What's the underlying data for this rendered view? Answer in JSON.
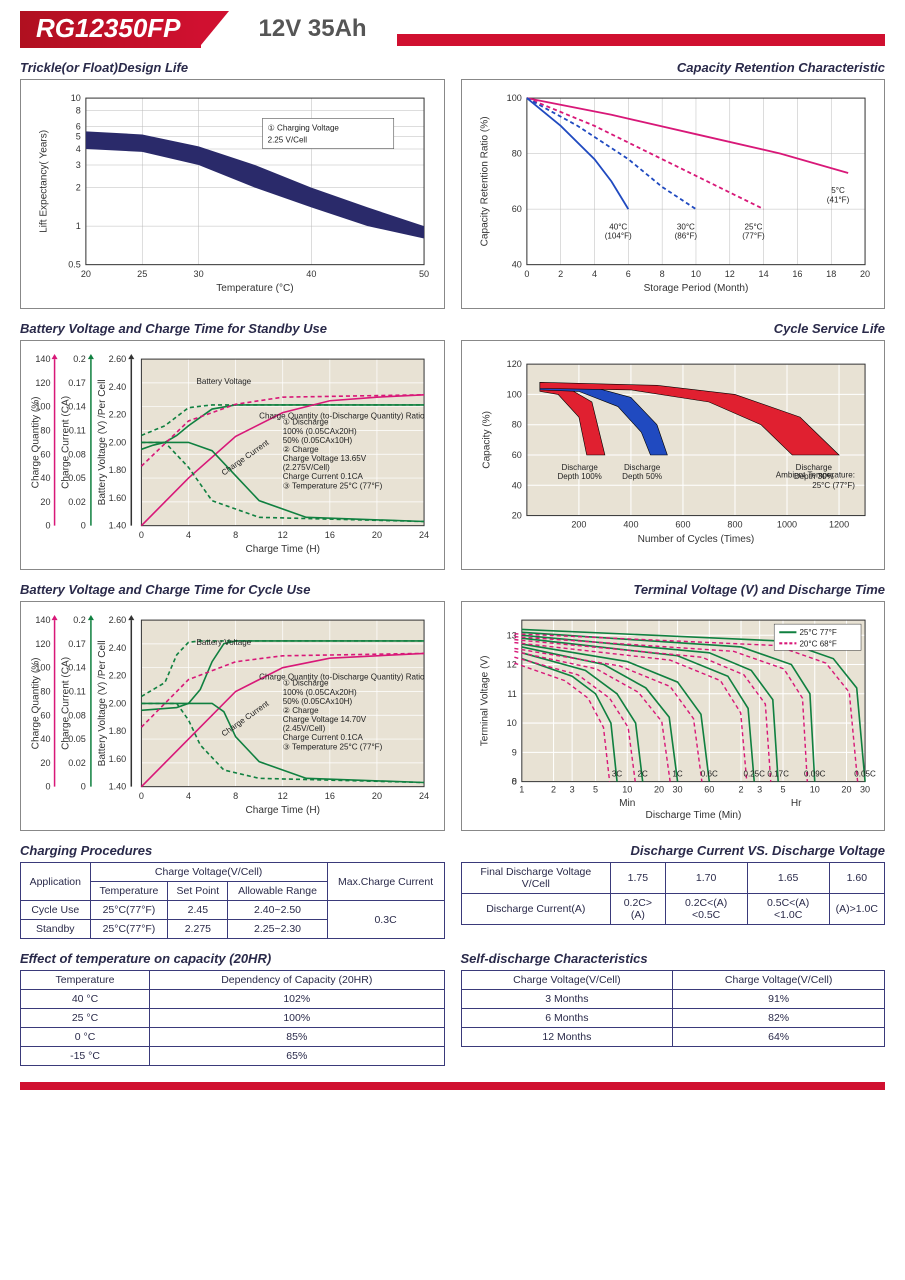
{
  "header": {
    "model": "RG12350FP",
    "spec": "12V  35Ah"
  },
  "colors": {
    "brand_red": "#d01030",
    "navy": "#2a2a6a",
    "magenta": "#d81878",
    "green": "#108040",
    "blue": "#204ac0",
    "red2": "#e02030",
    "grid": "#bbbbbb",
    "plot_bg": "#e8e2d4",
    "axis": "#333333"
  },
  "chart1": {
    "title": "Trickle(or Float)Design Life",
    "x_label": "Temperature (°C)",
    "y_label": "Lift  Expectancy( Years)",
    "x_ticks": [
      20,
      25,
      30,
      40,
      50
    ],
    "y_ticks": [
      0.5,
      1,
      2,
      3,
      4,
      5,
      6,
      8,
      10
    ],
    "y_scale": "log",
    "band_upper": [
      [
        20,
        5.5
      ],
      [
        25,
        5.2
      ],
      [
        30,
        4.2
      ],
      [
        35,
        3.0
      ],
      [
        40,
        2.0
      ],
      [
        45,
        1.4
      ],
      [
        50,
        1.0
      ]
    ],
    "band_lower": [
      [
        20,
        4.0
      ],
      [
        25,
        3.8
      ],
      [
        30,
        3.0
      ],
      [
        35,
        2.0
      ],
      [
        40,
        1.4
      ],
      [
        45,
        1.0
      ],
      [
        50,
        0.8
      ]
    ],
    "band_color": "#2a2a6a",
    "annotation": "① Charging Voltage\n2.25 V/Cell"
  },
  "chart2": {
    "title": "Capacity Retention Characteristic",
    "x_label": "Storage Period (Month)",
    "y_label": "Capacity Retention Ratio (%)",
    "x_ticks": [
      0,
      2,
      4,
      6,
      8,
      10,
      12,
      14,
      16,
      18,
      20
    ],
    "y_ticks": [
      40,
      60,
      80,
      100
    ],
    "lines": [
      {
        "label": "5°C\n(41°F)",
        "color": "#d81878",
        "dash": null,
        "pts": [
          [
            0,
            100
          ],
          [
            5,
            94
          ],
          [
            10,
            87
          ],
          [
            15,
            80
          ],
          [
            19,
            73
          ]
        ]
      },
      {
        "label": "25°C\n(77°F)",
        "color": "#d81878",
        "dash": "4,3",
        "pts": [
          [
            0,
            100
          ],
          [
            4,
            90
          ],
          [
            8,
            78
          ],
          [
            12,
            66
          ],
          [
            14,
            60
          ]
        ]
      },
      {
        "label": "30°C\n(86°F)",
        "color": "#204ac0",
        "dash": "4,3",
        "pts": [
          [
            0,
            100
          ],
          [
            3,
            90
          ],
          [
            6,
            78
          ],
          [
            8,
            68
          ],
          [
            10,
            60
          ]
        ]
      },
      {
        "label": "40°C\n(104°F)",
        "color": "#204ac0",
        "dash": null,
        "pts": [
          [
            0,
            100
          ],
          [
            2,
            90
          ],
          [
            4,
            78
          ],
          [
            5,
            70
          ],
          [
            6,
            60
          ]
        ]
      }
    ]
  },
  "chart3": {
    "title": "Battery Voltage and Charge Time for Standby Use",
    "x_label": "Charge Time (H)",
    "y1_label": "Charge Quantity (%)",
    "y2_label": "Charge Current (CA)",
    "y3_label": "Battery Voltage (V) /Per Cell",
    "x_ticks": [
      0,
      4,
      8,
      12,
      16,
      20,
      24
    ],
    "y1_ticks": [
      0,
      20,
      40,
      60,
      80,
      100,
      120,
      140
    ],
    "y2_ticks": [
      0,
      0.02,
      0.05,
      0.08,
      0.11,
      0.14,
      0.17,
      0.2
    ],
    "y3_ticks": [
      1.4,
      1.6,
      1.8,
      2.0,
      2.2,
      2.4,
      2.6
    ],
    "curves": {
      "voltage_100": {
        "color": "#108040",
        "dash": null,
        "pts": [
          [
            0,
            1.95
          ],
          [
            1,
            1.98
          ],
          [
            2,
            2.0
          ],
          [
            3,
            2.05
          ],
          [
            4,
            2.12
          ],
          [
            6,
            2.24
          ],
          [
            8,
            2.27
          ],
          [
            12,
            2.27
          ],
          [
            24,
            2.27
          ]
        ]
      },
      "voltage_50": {
        "color": "#108040",
        "dash": "4,3",
        "pts": [
          [
            0,
            2.05
          ],
          [
            2,
            2.12
          ],
          [
            4,
            2.25
          ],
          [
            6,
            2.27
          ],
          [
            24,
            2.27
          ]
        ]
      },
      "quantity_100": {
        "color": "#d81878",
        "dash": null,
        "pts": [
          [
            0,
            0
          ],
          [
            4,
            40
          ],
          [
            8,
            75
          ],
          [
            12,
            95
          ],
          [
            16,
            105
          ],
          [
            20,
            108
          ],
          [
            24,
            110
          ]
        ]
      },
      "quantity_50": {
        "color": "#d81878",
        "dash": "4,3",
        "pts": [
          [
            0,
            50
          ],
          [
            4,
            88
          ],
          [
            8,
            102
          ],
          [
            12,
            108
          ],
          [
            24,
            110
          ]
        ]
      },
      "current_100": {
        "color": "#108040",
        "dash": null,
        "pts": [
          [
            0,
            0.1
          ],
          [
            4,
            0.1
          ],
          [
            6,
            0.09
          ],
          [
            8,
            0.06
          ],
          [
            10,
            0.03
          ],
          [
            14,
            0.01
          ],
          [
            24,
            0.005
          ]
        ]
      },
      "current_50": {
        "color": "#108040",
        "dash": "4,3",
        "pts": [
          [
            0,
            0.1
          ],
          [
            2,
            0.1
          ],
          [
            4,
            0.07
          ],
          [
            6,
            0.03
          ],
          [
            10,
            0.01
          ],
          [
            24,
            0.005
          ]
        ]
      }
    },
    "notes": [
      "Battery Voltage",
      "Charge Quantity (to-Discharge Quantity) Ratio",
      "① Discharge",
      "100% (0.05CAx20H)",
      "50% (0.05CAx10H)",
      "② Charge",
      "Charge Voltage 13.65V",
      "(2.275V/Cell)",
      "Charge Current 0.1CA",
      "③ Temperature 25°C (77°F)",
      "Charge Current"
    ]
  },
  "chart4": {
    "title": "Cycle Service Life",
    "x_label": "Number of Cycles (Times)",
    "y_label": "Capacity (%)",
    "x_ticks": [
      200,
      400,
      600,
      800,
      1000,
      1200
    ],
    "y_ticks": [
      20,
      40,
      60,
      80,
      100,
      120
    ],
    "regions": [
      {
        "label": "Discharge\nDepth 100%",
        "color": "#e02030",
        "upper": [
          [
            50,
            108
          ],
          [
            150,
            105
          ],
          [
            250,
            95
          ],
          [
            300,
            60
          ]
        ],
        "lower": [
          [
            50,
            102
          ],
          [
            120,
            100
          ],
          [
            200,
            85
          ],
          [
            230,
            60
          ]
        ]
      },
      {
        "label": "Discharge\nDepth 50%",
        "color": "#204ac0",
        "upper": [
          [
            50,
            108
          ],
          [
            250,
            105
          ],
          [
            400,
            98
          ],
          [
            500,
            80
          ],
          [
            540,
            60
          ]
        ],
        "lower": [
          [
            50,
            103
          ],
          [
            200,
            102
          ],
          [
            350,
            92
          ],
          [
            440,
            75
          ],
          [
            475,
            60
          ]
        ]
      },
      {
        "label": "Discharge\nDepth 30%",
        "color": "#e02030",
        "upper": [
          [
            50,
            108
          ],
          [
            500,
            106
          ],
          [
            800,
            100
          ],
          [
            1050,
            85
          ],
          [
            1200,
            60
          ]
        ],
        "lower": [
          [
            50,
            104
          ],
          [
            400,
            103
          ],
          [
            700,
            95
          ],
          [
            900,
            80
          ],
          [
            1020,
            60
          ]
        ]
      }
    ],
    "ambient": "Ambient Temperature:\n25°C (77°F)"
  },
  "chart5": {
    "title": "Battery Voltage and Charge Time for Cycle Use",
    "x_label": "Charge Time (H)",
    "y1_label": "Charge Quantity (%)",
    "y2_label": "Charge Current (CA)",
    "y3_label": "Battery Voltage (V) /Per Cell",
    "x_ticks": [
      0,
      4,
      8,
      12,
      16,
      20,
      24
    ],
    "y1_ticks": [
      0,
      20,
      40,
      60,
      80,
      100,
      120,
      140
    ],
    "y2_ticks": [
      0,
      0.02,
      0.05,
      0.08,
      0.11,
      0.14,
      0.17,
      0.2
    ],
    "y3_ticks": [
      1.4,
      1.6,
      1.8,
      2.0,
      2.2,
      2.4,
      2.6
    ],
    "curves": {
      "voltage_100": {
        "color": "#108040",
        "dash": null,
        "pts": [
          [
            0,
            1.95
          ],
          [
            3,
            1.97
          ],
          [
            4,
            2.0
          ],
          [
            5,
            2.1
          ],
          [
            6,
            2.3
          ],
          [
            7,
            2.43
          ],
          [
            8,
            2.45
          ],
          [
            24,
            2.45
          ]
        ]
      },
      "voltage_50": {
        "color": "#108040",
        "dash": "4,3",
        "pts": [
          [
            0,
            2.05
          ],
          [
            2,
            2.15
          ],
          [
            3,
            2.35
          ],
          [
            4,
            2.44
          ],
          [
            5,
            2.45
          ],
          [
            24,
            2.45
          ]
        ]
      },
      "quantity_100": {
        "color": "#d81878",
        "dash": null,
        "pts": [
          [
            0,
            0
          ],
          [
            4,
            40
          ],
          [
            8,
            80
          ],
          [
            12,
            100
          ],
          [
            16,
            108
          ],
          [
            24,
            112
          ]
        ]
      },
      "quantity_50": {
        "color": "#d81878",
        "dash": "4,3",
        "pts": [
          [
            0,
            50
          ],
          [
            4,
            90
          ],
          [
            8,
            105
          ],
          [
            12,
            110
          ],
          [
            24,
            112
          ]
        ]
      },
      "current_100": {
        "color": "#108040",
        "dash": null,
        "pts": [
          [
            0,
            0.1
          ],
          [
            6,
            0.1
          ],
          [
            7,
            0.09
          ],
          [
            8,
            0.06
          ],
          [
            10,
            0.03
          ],
          [
            14,
            0.01
          ],
          [
            24,
            0.005
          ]
        ]
      },
      "current_50": {
        "color": "#108040",
        "dash": "4,3",
        "pts": [
          [
            0,
            0.1
          ],
          [
            3,
            0.1
          ],
          [
            4,
            0.08
          ],
          [
            5,
            0.05
          ],
          [
            7,
            0.02
          ],
          [
            10,
            0.01
          ],
          [
            24,
            0.005
          ]
        ]
      }
    },
    "notes": [
      "Battery Voltage",
      "Charge Quantity (to-Discharge Quantity) Ratio",
      "① Discharge",
      "100% (0.05CAx20H)",
      "50% (0.05CAx10H)",
      "② Charge",
      "Charge Voltage 14.70V",
      "(2.45V/Cell)",
      "Charge Current 0.1CA",
      "③ Temperature 25°C (77°F)",
      "Charge Current"
    ]
  },
  "chart6": {
    "title": "Terminal Voltage (V) and Discharge Time",
    "x_label": "Discharge Time (Min)",
    "y_label": "Terminal Voltage (V)",
    "x_segments": {
      "min": [
        1,
        2,
        3,
        5,
        10,
        20,
        30,
        60
      ],
      "hr": [
        2,
        3,
        5,
        10,
        20,
        30
      ]
    },
    "y_ticks": [
      0,
      8,
      9,
      10,
      11,
      12,
      13
    ],
    "legend": [
      {
        "label": "25°C 77°F",
        "color": "#108040",
        "dash": null
      },
      {
        "label": "20°C 68°F",
        "color": "#d81878",
        "dash": "4,3"
      }
    ],
    "rates": [
      "3C",
      "2C",
      "1C",
      "0.6C",
      "0.25C",
      "0.17C",
      "0.09C",
      "0.05C"
    ],
    "curves25": [
      [
        [
          1,
          12.2
        ],
        [
          3,
          11.6
        ],
        [
          5,
          11.0
        ],
        [
          7,
          10.0
        ],
        [
          8,
          8.0
        ]
      ],
      [
        [
          1,
          12.4
        ],
        [
          4,
          11.8
        ],
        [
          8,
          11.0
        ],
        [
          12,
          10.0
        ],
        [
          14,
          8.0
        ]
      ],
      [
        [
          1,
          12.6
        ],
        [
          6,
          12.0
        ],
        [
          15,
          11.2
        ],
        [
          25,
          10.2
        ],
        [
          30,
          8.0
        ]
      ],
      [
        [
          1,
          12.7
        ],
        [
          10,
          12.1
        ],
        [
          30,
          11.4
        ],
        [
          50,
          10.3
        ],
        [
          60,
          8.0
        ]
      ],
      [
        [
          1,
          12.9
        ],
        [
          30,
          12.3
        ],
        [
          90,
          11.6
        ],
        [
          140,
          10.5
        ],
        [
          160,
          8.0
        ]
      ],
      [
        [
          1,
          13.0
        ],
        [
          60,
          12.4
        ],
        [
          150,
          11.8
        ],
        [
          240,
          10.8
        ],
        [
          270,
          8.0
        ]
      ],
      [
        [
          1,
          13.1
        ],
        [
          120,
          12.6
        ],
        [
          360,
          12.0
        ],
        [
          540,
          11.0
        ],
        [
          600,
          8.0
        ]
      ],
      [
        [
          1,
          13.2
        ],
        [
          300,
          12.8
        ],
        [
          900,
          12.2
        ],
        [
          1500,
          11.2
        ],
        [
          1800,
          8.0
        ]
      ]
    ]
  },
  "table_charging": {
    "title": "Charging Procedures",
    "headers": {
      "app": "Application",
      "cv": "Charge Voltage(V/Cell)",
      "temp": "Temperature",
      "sp": "Set Point",
      "ar": "Allowable Range",
      "max": "Max.Charge Current"
    },
    "rows": [
      {
        "app": "Cycle Use",
        "temp": "25°C(77°F)",
        "sp": "2.45",
        "ar": "2.40~2.50"
      },
      {
        "app": "Standby",
        "temp": "25°C(77°F)",
        "sp": "2.275",
        "ar": "2.25~2.30"
      }
    ],
    "max_current": "0.3C"
  },
  "table_discharge": {
    "title": "Discharge Current VS. Discharge Voltage",
    "r1_label": "Final Discharge Voltage V/Cell",
    "r1": [
      "1.75",
      "1.70",
      "1.65",
      "1.60"
    ],
    "r2_label": "Discharge Current(A)",
    "r2": [
      "0.2C>(A)",
      "0.2C<(A)<0.5C",
      "0.5C<(A)<1.0C",
      "(A)>1.0C"
    ]
  },
  "table_temp": {
    "title": "Effect of temperature on capacity (20HR)",
    "headers": [
      "Temperature",
      "Dependency of Capacity (20HR)"
    ],
    "rows": [
      [
        "40 °C",
        "102%"
      ],
      [
        "25 °C",
        "100%"
      ],
      [
        "0 °C",
        "85%"
      ],
      [
        "-15 °C",
        "65%"
      ]
    ]
  },
  "table_self": {
    "title": "Self-discharge Characteristics",
    "headers": [
      "Charge Voltage(V/Cell)",
      "Charge Voltage(V/Cell)"
    ],
    "rows": [
      [
        "3 Months",
        "91%"
      ],
      [
        "6 Months",
        "82%"
      ],
      [
        "12 Months",
        "64%"
      ]
    ]
  }
}
